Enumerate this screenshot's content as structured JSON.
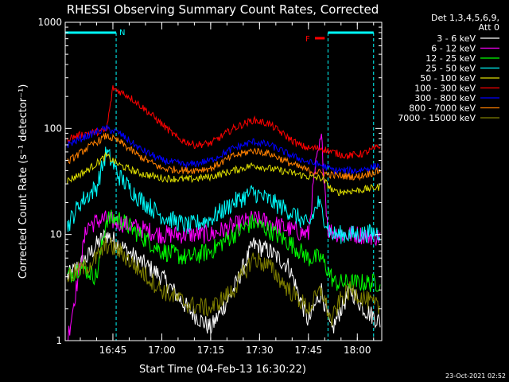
{
  "chart_data": {
    "type": "line",
    "title": "RHESSI Observing Summary Count Rates, Corrected",
    "xlabel": "Start Time (04-Feb-13 16:30:22)",
    "ylabel": "Corrected Count Rate (s⁻¹ detector⁻¹)",
    "y_scale": "log",
    "ylim": [
      1,
      1000
    ],
    "y_ticks": [
      {
        "value": 1,
        "label": "1"
      },
      {
        "value": 10,
        "label": "10"
      },
      {
        "value": 100,
        "label": "100"
      },
      {
        "value": 1000,
        "label": "1000"
      }
    ],
    "x_ticks": [
      {
        "time": "16:45",
        "label": "16:45"
      },
      {
        "time": "17:00",
        "label": "17:00"
      },
      {
        "time": "17:15",
        "label": "17:15"
      },
      {
        "time": "17:30",
        "label": "17:30"
      },
      {
        "time": "17:45",
        "label": "17:45"
      },
      {
        "time": "18:00",
        "label": "18:00"
      }
    ],
    "xlim": [
      "16:30:22",
      "18:07:30"
    ],
    "legend_header": [
      "Det 1,3,4,5,6,9,",
      "Att 0"
    ],
    "legend_position": "right",
    "flag_labels": {
      "night": "N",
      "flare": "F"
    },
    "flag_intervals": {
      "night": [
        [
          "16:30:22",
          "16:46:00"
        ],
        [
          "17:51:00",
          "18:05:00"
        ]
      ],
      "flare": [
        [
          "17:47:00",
          "17:50:00"
        ]
      ]
    },
    "series": [
      {
        "name": "3 - 6 keV",
        "color": "#ffffff",
        "x": [
          "16:31",
          "16:37",
          "16:40",
          "16:43",
          "16:47",
          "16:52",
          "17:00",
          "17:08",
          "17:15",
          "17:22",
          "17:28",
          "17:33",
          "17:39",
          "17:45",
          "17:49",
          "17:52",
          "17:55",
          "17:58",
          "18:02",
          "18:07"
        ],
        "y": [
          4,
          6,
          8,
          10,
          8,
          6,
          4,
          2,
          1.3,
          3,
          8,
          7,
          5,
          1.5,
          3,
          1.2,
          2,
          3,
          2,
          1.5
        ]
      },
      {
        "name": "6 - 12 keV",
        "color": "#ff00ff",
        "x": [
          "16:31",
          "16:37",
          "16:42",
          "16:47",
          "16:55",
          "17:00",
          "17:08",
          "17:15",
          "17:22",
          "17:28",
          "17:33",
          "17:40",
          "17:45",
          "17:47",
          "17:49",
          "17:51",
          "17:55",
          "18:00",
          "18:07"
        ],
        "y": [
          1,
          12,
          14,
          13,
          11,
          10,
          10,
          10,
          12,
          14,
          13,
          11,
          10,
          40,
          80,
          11,
          10,
          10,
          9.5
        ]
      },
      {
        "name": "12 - 25 keV",
        "color": "#00ff00",
        "x": [
          "16:31",
          "16:35",
          "16:40",
          "16:43",
          "16:47",
          "16:53",
          "17:00",
          "17:08",
          "17:15",
          "17:22",
          "17:28",
          "17:33",
          "17:40",
          "17:45",
          "17:49",
          "17:53",
          "18:00",
          "18:07"
        ],
        "y": [
          4,
          5,
          4,
          14,
          14,
          10,
          7,
          6,
          7,
          10,
          13,
          11,
          8,
          6,
          6,
          3.5,
          3.5,
          3.5
        ]
      },
      {
        "name": "25 - 50 keV",
        "color": "#00ffff",
        "x": [
          "16:31",
          "16:35",
          "16:40",
          "16:43",
          "16:47",
          "16:53",
          "17:00",
          "17:08",
          "17:15",
          "17:22",
          "17:28",
          "17:33",
          "17:40",
          "17:45",
          "17:48",
          "17:52",
          "18:00",
          "18:07"
        ],
        "y": [
          12,
          20,
          28,
          60,
          35,
          22,
          15,
          12,
          14,
          20,
          25,
          21,
          16,
          12,
          20,
          10,
          10,
          10.5
        ]
      },
      {
        "name": "50 - 100 keV",
        "color": "#dcdc00",
        "x": [
          "16:31",
          "16:37",
          "16:43",
          "16:47",
          "16:53",
          "17:00",
          "17:08",
          "17:15",
          "17:22",
          "17:28",
          "17:33",
          "17:40",
          "17:45",
          "17:49",
          "17:53",
          "18:00",
          "18:07"
        ],
        "y": [
          32,
          40,
          55,
          45,
          38,
          34,
          33,
          35,
          40,
          45,
          42,
          38,
          35,
          34,
          25,
          26,
          28
        ]
      },
      {
        "name": "100 - 300 keV",
        "color": "#ff0000",
        "x": [
          "16:31",
          "16:37",
          "16:43",
          "16:45",
          "16:50",
          "16:55",
          "17:00",
          "17:05",
          "17:10",
          "17:15",
          "17:22",
          "17:28",
          "17:33",
          "17:38",
          "17:42",
          "17:45",
          "17:49",
          "17:52",
          "17:57",
          "18:02",
          "18:07"
        ],
        "y": [
          80,
          90,
          95,
          240,
          200,
          150,
          110,
          80,
          70,
          72,
          100,
          120,
          110,
          85,
          70,
          65,
          65,
          60,
          55,
          58,
          68
        ]
      },
      {
        "name": "300 - 800 keV",
        "color": "#0000ff",
        "x": [
          "16:31",
          "16:37",
          "16:43",
          "16:47",
          "16:53",
          "17:00",
          "17:08",
          "17:15",
          "17:22",
          "17:28",
          "17:33",
          "17:40",
          "17:45",
          "17:49",
          "17:53",
          "18:00",
          "18:07"
        ],
        "y": [
          70,
          85,
          100,
          90,
          65,
          50,
          45,
          50,
          65,
          75,
          70,
          55,
          48,
          45,
          40,
          40,
          45
        ]
      },
      {
        "name": "800 - 7000 keV",
        "color": "#ff8000",
        "x": [
          "16:31",
          "16:37",
          "16:43",
          "16:47",
          "16:53",
          "17:00",
          "17:08",
          "17:15",
          "17:22",
          "17:28",
          "17:33",
          "17:40",
          "17:45",
          "17:49",
          "17:53",
          "18:00",
          "18:07"
        ],
        "y": [
          48,
          65,
          85,
          75,
          55,
          42,
          40,
          42,
          55,
          62,
          58,
          46,
          40,
          38,
          36,
          35,
          40
        ]
      },
      {
        "name": "7000 - 15000 keV",
        "color": "#808000",
        "x": [
          "16:31",
          "16:37",
          "16:40",
          "16:43",
          "16:47",
          "16:52",
          "17:00",
          "17:08",
          "17:15",
          "17:22",
          "17:28",
          "17:33",
          "17:39",
          "17:45",
          "17:49",
          "17:52",
          "17:55",
          "17:58",
          "18:02",
          "18:07"
        ],
        "y": [
          4,
          5,
          6,
          8,
          7,
          5,
          3,
          2.2,
          2,
          3,
          6,
          5,
          3,
          2,
          3,
          1.5,
          2.5,
          3,
          2.5,
          2
        ]
      }
    ]
  },
  "footer": {
    "timestamp": "23-Oct-2021 02:52"
  }
}
